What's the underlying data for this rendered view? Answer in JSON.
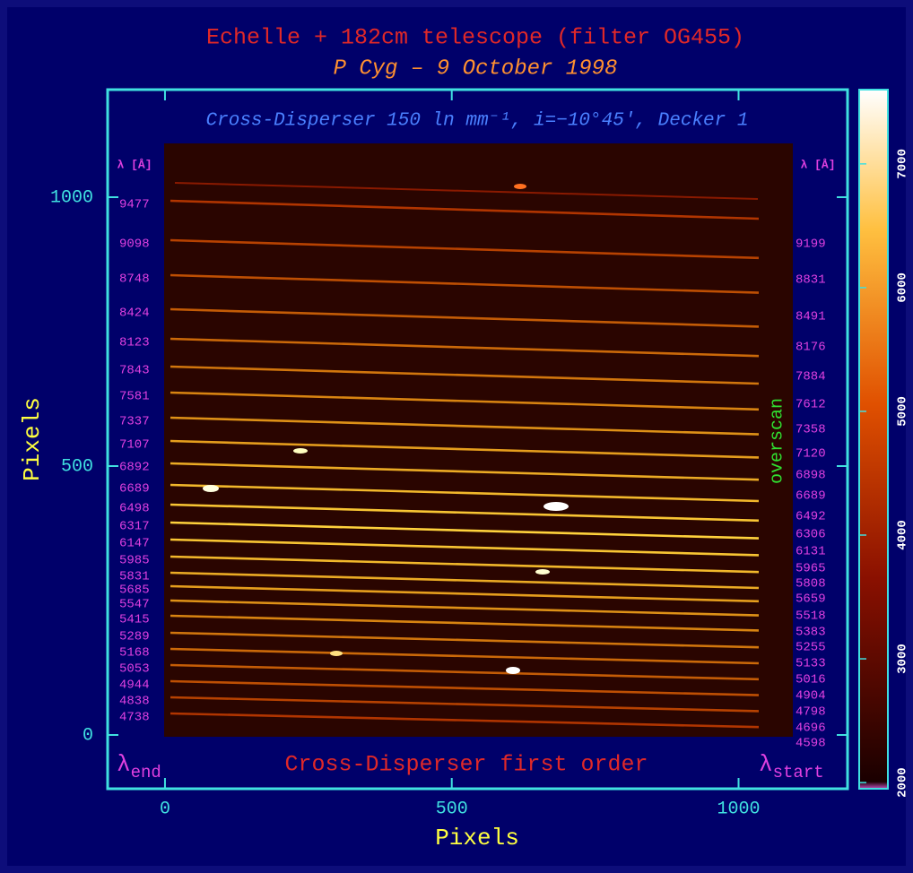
{
  "chart_data": {
    "type": "image",
    "title": "Echelle + 182cm telescope (filter OG455)",
    "subtitle": "P Cyg – 9 October 1998",
    "inner_title": "Cross-Disperser 150 ln mm⁻¹, i=−10°45', Decker 1",
    "bottom_label": "Cross-Disperser first order",
    "xlabel": "Pixels",
    "ylabel": "Pixels",
    "xlim": [
      -100,
      1190
    ],
    "xticks": [
      0,
      500,
      1000
    ],
    "ylim": [
      -100,
      1200
    ],
    "yticks": [
      0,
      500,
      1000
    ],
    "wavelength_unit": "λ [Å]",
    "left_wavelengths": [
      9477,
      9098,
      8748,
      8424,
      8123,
      7843,
      7581,
      7337,
      7107,
      6892,
      6689,
      6498,
      6317,
      6147,
      5985,
      5831,
      5685,
      5547,
      5415,
      5289,
      5168,
      5053,
      4944,
      4838,
      4738
    ],
    "right_wavelengths": [
      9199,
      8831,
      8491,
      8176,
      7884,
      7612,
      7358,
      7120,
      6898,
      6689,
      6492,
      6306,
      6131,
      5965,
      5808,
      5659,
      5518,
      5383,
      5255,
      5133,
      5016,
      4904,
      4798,
      4696,
      4598
    ],
    "left_corner": {
      "symbol": "λ",
      "subscript": "end"
    },
    "right_corner": {
      "symbol": "λ",
      "subscript": "start"
    },
    "overscan_label": "overscan",
    "colorbar": {
      "lim": [
        1950,
        7600
      ],
      "ticks": [
        2000,
        3000,
        4000,
        5000,
        6000,
        7000
      ]
    }
  }
}
